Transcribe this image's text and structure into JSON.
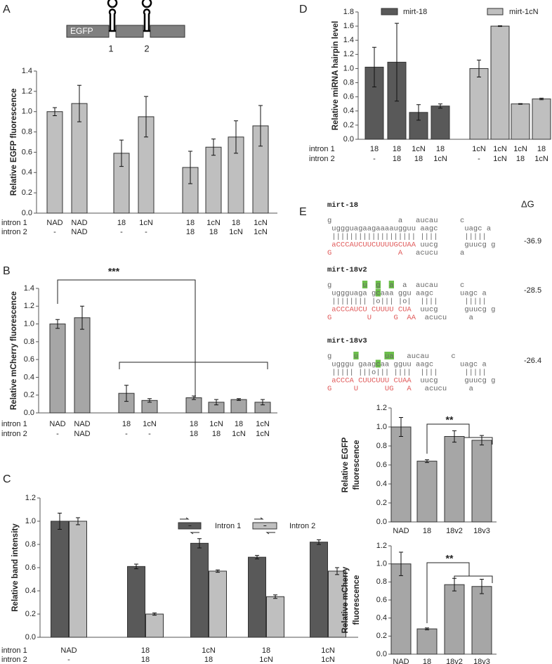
{
  "chart_data": [
    {
      "panel": "A",
      "type": "bar",
      "diagram": {
        "gene": "EGFP",
        "sites": [
          "1",
          "2"
        ]
      },
      "y_label": "Relative EGFP fluorescence",
      "ylim": [
        0,
        1.4
      ],
      "yticks": [
        {
          "value": 0,
          "label": "0.0"
        },
        0.2,
        0.4,
        0.6,
        0.8,
        {
          "value": 1,
          "label": "1.0"
        },
        1.2,
        1.4
      ],
      "row_labels": [
        "intron 1",
        "intron 2"
      ],
      "categories": [
        "NAD",
        "NAD",
        "18",
        "1cN",
        "18",
        "1cN",
        "18",
        "1cN"
      ],
      "categories_row2": [
        "-",
        "NAD",
        "-",
        "-",
        "18",
        "18",
        "1cN",
        "1cN"
      ],
      "values": [
        1.0,
        1.08,
        0.59,
        0.95,
        0.45,
        0.65,
        0.75,
        0.86
      ],
      "errors": [
        0.04,
        0.18,
        0.13,
        0.2,
        0.16,
        0.08,
        0.16,
        0.2
      ],
      "color": "#bfbfbf"
    },
    {
      "panel": "B",
      "type": "bar",
      "annotation": "***",
      "y_label": "Relative mCherry fluorescence",
      "ylim": [
        0,
        1.4
      ],
      "yticks": [
        {
          "value": 0,
          "label": "0.0"
        },
        0.2,
        0.4,
        0.6,
        0.8,
        {
          "value": 1,
          "label": "1.0"
        },
        1.2,
        1.4
      ],
      "row_labels": [
        "intron 1",
        "intron 2"
      ],
      "categories": [
        "NAD",
        "NAD",
        "18",
        "1cN",
        "18",
        "1cN",
        "18",
        "1cN"
      ],
      "categories_row2": [
        "-",
        "NAD",
        "-",
        "-",
        "18",
        "18",
        "1cN",
        "1cN"
      ],
      "values": [
        1.0,
        1.07,
        0.22,
        0.14,
        0.17,
        0.12,
        0.15,
        0.12
      ],
      "errors": [
        0.05,
        0.13,
        0.09,
        0.02,
        0.02,
        0.03,
        0.01,
        0.03
      ],
      "color": "#a6a6a6"
    },
    {
      "panel": "C",
      "type": "bar",
      "y_label": "Relative band intensity",
      "ylim": [
        0,
        1.2
      ],
      "yticks": [
        {
          "value": 0,
          "label": "0.0"
        },
        0.2,
        0.4,
        0.6,
        0.8,
        {
          "value": 1,
          "label": "1.0"
        },
        1.2
      ],
      "row_labels": [
        "intron 1",
        "intron 2"
      ],
      "categories": [
        "NAD",
        "18",
        "1cN",
        "18",
        "1cN"
      ],
      "categories_row2": [
        "-",
        "18",
        "18",
        "1cN",
        "1cN"
      ],
      "series": [
        {
          "name": "Intron 1",
          "color": "#595959",
          "values": [
            1.0,
            0.61,
            0.81,
            0.69,
            0.82
          ],
          "errors": [
            0.07,
            0.02,
            0.04,
            0.015,
            0.02
          ]
        },
        {
          "name": "Intron 2",
          "color": "#bfbfbf",
          "values": [
            1.0,
            0.2,
            0.57,
            0.35,
            0.57
          ],
          "errors": [
            0.03,
            0.01,
            0.01,
            0.015,
            0.03
          ]
        }
      ]
    },
    {
      "panel": "D",
      "type": "bar",
      "y_label": "Relative miRNA hairpin level",
      "ylim": [
        0,
        1.8
      ],
      "yticks": [
        {
          "value": 0,
          "label": "0.0"
        },
        0.2,
        0.4,
        0.6,
        0.8,
        {
          "value": 1,
          "label": "1.0"
        },
        1.2,
        1.4,
        1.6,
        1.8
      ],
      "row_labels": [
        "intron 1",
        "intron 2"
      ],
      "categories": [
        "18",
        "18",
        "1cN",
        "18",
        "1cN",
        "1cN",
        "1cN",
        "18"
      ],
      "categories_row2": [
        "-",
        "18",
        "18",
        "1cN",
        "-",
        "1cN",
        "18",
        "1cN"
      ],
      "series": [
        {
          "name": "mirt-18",
          "color": "#595959",
          "values": [
            1.02,
            1.09,
            0.38,
            0.47,
            null,
            null,
            null,
            null
          ],
          "errors": [
            0.28,
            0.55,
            0.11,
            0.03,
            null,
            null,
            null,
            null
          ]
        },
        {
          "name": "mirt-1cN",
          "color": "#bfbfbf",
          "values": [
            null,
            null,
            null,
            null,
            1.0,
            1.6,
            0.5,
            0.57
          ],
          "errors": [
            null,
            null,
            null,
            null,
            0.12,
            0.005,
            0.005,
            0.01
          ]
        }
      ]
    },
    {
      "type": "bar",
      "annotation": "**",
      "y_label": [
        "Relative EGFP",
        "fluorescence"
      ],
      "ylim": [
        0,
        1.2
      ],
      "yticks": [
        {
          "value": 0,
          "label": "0.0"
        },
        0.2,
        0.4,
        0.6,
        0.8,
        {
          "value": 1,
          "label": "1.0"
        },
        1.2
      ],
      "categories": [
        "NAD",
        "18",
        "18v2",
        "18v3"
      ],
      "values": [
        1.0,
        0.64,
        0.9,
        0.86
      ],
      "errors": [
        0.1,
        0.015,
        0.06,
        0.05
      ],
      "color": "#a6a6a6"
    },
    {
      "type": "bar",
      "annotation": "**",
      "y_label": [
        "Relative mCherry",
        "fluorescence"
      ],
      "ylim": [
        0,
        1.2
      ],
      "yticks": [
        {
          "value": 0,
          "label": "0.0"
        },
        0.2,
        0.4,
        0.6,
        0.8,
        {
          "value": 1,
          "label": "1.0"
        },
        1.2
      ],
      "categories": [
        "NAD",
        "18",
        "18v2",
        "18v3"
      ],
      "values": [
        1.0,
        0.28,
        0.77,
        0.75
      ],
      "errors": [
        0.13,
        0.01,
        0.07,
        0.08
      ],
      "color": "#a6a6a6"
    }
  ],
  "structures": {
    "panel": "E",
    "delta_g_header": "ΔG",
    "items": [
      {
        "name": "mirt-18",
        "delta_g": -36.9,
        "lines": [
          [
            "g               a   aucau     c"
          ],
          [
            " uggguagaagaaaaugguu aagc      uagc a"
          ],
          [
            " ||||||||||||||||||| ||||      |||||"
          ],
          [
            " aCCCAUCUUCUUUUGCUAA",
            " uucg      guucg g"
          ],
          [
            "G               A",
            "   acucu     a"
          ]
        ]
      },
      {
        "name": "mirt-18v2",
        "delta_g": -28.5,
        "lines": [
          [
            "g       u  g  a  a  aucau     c"
          ],
          [
            " uggguaga gcaaa ggu aagc      uagc a"
          ],
          [
            " |||||||| |o||| |o|  ||||      |||||"
          ],
          [
            " aCCCAUCU CUUUU CUA",
            "  uucg      guucg g"
          ],
          [
            "G        U     G  AA",
            "  acucu     a"
          ]
        ]
      },
      {
        "name": "mirt-18v3",
        "delta_g": -26.4,
        "lines": [
          [
            "g     u      ua   aucau     c"
          ],
          [
            " ugggu gaagcaa gguu aagc      uagc a"
          ],
          [
            " ||||| |||o||| ||||  ||||      |||||"
          ],
          [
            " aCCCA CUUCUUU CUAA",
            "  uucg      guucg g"
          ],
          [
            "G     U      UG   A",
            "   acucu     a"
          ]
        ]
      }
    ]
  }
}
